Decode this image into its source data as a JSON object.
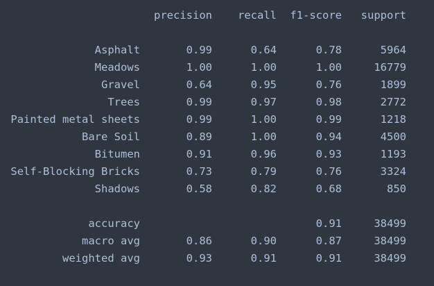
{
  "header": {
    "precision": "precision",
    "recall": "recall",
    "f1_score": "f1-score",
    "support": "support"
  },
  "classes": [
    {
      "label": "Asphalt",
      "precision": "0.99",
      "recall": "0.64",
      "f1": "0.78",
      "support": "5964"
    },
    {
      "label": "Meadows",
      "precision": "1.00",
      "recall": "1.00",
      "f1": "1.00",
      "support": "16779"
    },
    {
      "label": "Gravel",
      "precision": "0.64",
      "recall": "0.95",
      "f1": "0.76",
      "support": "1899"
    },
    {
      "label": "Trees",
      "precision": "0.99",
      "recall": "0.97",
      "f1": "0.98",
      "support": "2772"
    },
    {
      "label": "Painted metal sheets",
      "precision": "0.99",
      "recall": "1.00",
      "f1": "0.99",
      "support": "1218"
    },
    {
      "label": "Bare Soil",
      "precision": "0.89",
      "recall": "1.00",
      "f1": "0.94",
      "support": "4500"
    },
    {
      "label": "Bitumen",
      "precision": "0.91",
      "recall": "0.96",
      "f1": "0.93",
      "support": "1193"
    },
    {
      "label": "Self-Blocking Bricks",
      "precision": "0.73",
      "recall": "0.79",
      "f1": "0.76",
      "support": "3324"
    },
    {
      "label": "Shadows",
      "precision": "0.58",
      "recall": "0.82",
      "f1": "0.68",
      "support": "850"
    }
  ],
  "summary": [
    {
      "label": "accuracy",
      "precision": "",
      "recall": "",
      "f1": "0.91",
      "support": "38499"
    },
    {
      "label": "macro avg",
      "precision": "0.86",
      "recall": "0.90",
      "f1": "0.87",
      "support": "38499"
    },
    {
      "label": "weighted avg",
      "precision": "0.93",
      "recall": "0.91",
      "f1": "0.91",
      "support": "38499"
    }
  ]
}
